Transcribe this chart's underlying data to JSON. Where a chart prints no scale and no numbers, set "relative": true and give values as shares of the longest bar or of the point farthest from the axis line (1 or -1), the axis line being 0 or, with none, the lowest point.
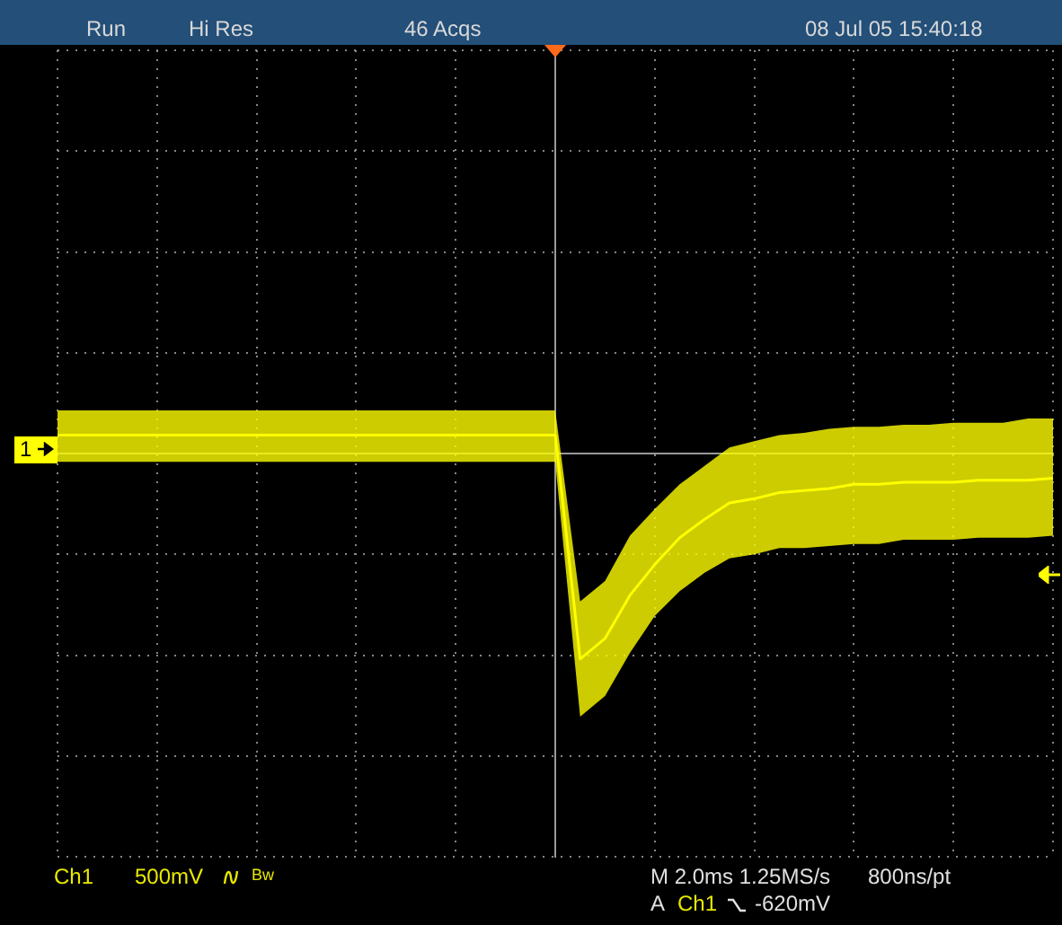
{
  "chart_data": {
    "type": "line",
    "relative": true,
    "grid": true,
    "legend": false,
    "marker": "none",
    "line_style": "solid",
    "categories": [
      null,
      null,
      null,
      null,
      null,
      null,
      null,
      null,
      null,
      null,
      null,
      null,
      null,
      null,
      null,
      null,
      null,
      null,
      null,
      null,
      null,
      null,
      null,
      null,
      null,
      null,
      null,
      null,
      null,
      null,
      null,
      null,
      null,
      null,
      null,
      null,
      null,
      null,
      null,
      null,
      null
    ],
    "series": [
      {
        "color": "#ffff00",
        "values": [
          0.09,
          0.09,
          0.09,
          0.09,
          0.09,
          0.09,
          0.09,
          0.09,
          0.09,
          0.09,
          0.09,
          0.09,
          0.09,
          0.09,
          0.09,
          0.09,
          0.09,
          0.09,
          0.09,
          0.09,
          0.09,
          -1.0,
          -0.9,
          -0.69,
          -0.54,
          -0.41,
          -0.32,
          -0.24,
          -0.22,
          -0.19,
          -0.18,
          -0.17,
          -0.15,
          -0.15,
          -0.14,
          -0.14,
          -0.14,
          -0.13,
          -0.13,
          -0.13,
          -0.12
        ],
        "upper": [
          0.21,
          0.21,
          0.21,
          0.21,
          0.21,
          0.21,
          0.21,
          0.21,
          0.21,
          0.21,
          0.21,
          0.21,
          0.21,
          0.21,
          0.21,
          0.21,
          0.21,
          0.21,
          0.21,
          0.21,
          0.21,
          -0.72,
          -0.62,
          -0.4,
          -0.27,
          -0.15,
          -0.06,
          0.03,
          0.06,
          0.09,
          0.1,
          0.12,
          0.13,
          0.13,
          0.14,
          0.14,
          0.15,
          0.15,
          0.15,
          0.17,
          0.17
        ],
        "lower": [
          -0.04,
          -0.04,
          -0.04,
          -0.04,
          -0.04,
          -0.04,
          -0.04,
          -0.04,
          -0.04,
          -0.04,
          -0.04,
          -0.04,
          -0.04,
          -0.04,
          -0.04,
          -0.04,
          -0.04,
          -0.04,
          -0.04,
          -0.04,
          -0.04,
          -1.28,
          -1.18,
          -0.97,
          -0.79,
          -0.67,
          -0.58,
          -0.51,
          -0.49,
          -0.46,
          -0.46,
          -0.45,
          -0.44,
          -0.44,
          -0.42,
          -0.42,
          -0.42,
          -0.41,
          -0.41,
          -0.41,
          -0.4
        ]
      }
    ],
    "annotations": [
      "Run",
      "Hi Res",
      "46 Acqs",
      "08 Jul 05 15:40:18",
      "Ch1",
      "500mV",
      "Bw",
      "M 2.0ms 1.25MS/s",
      "800ns/pt",
      "A",
      "Ch1",
      "-620mV",
      "1"
    ]
  }
}
